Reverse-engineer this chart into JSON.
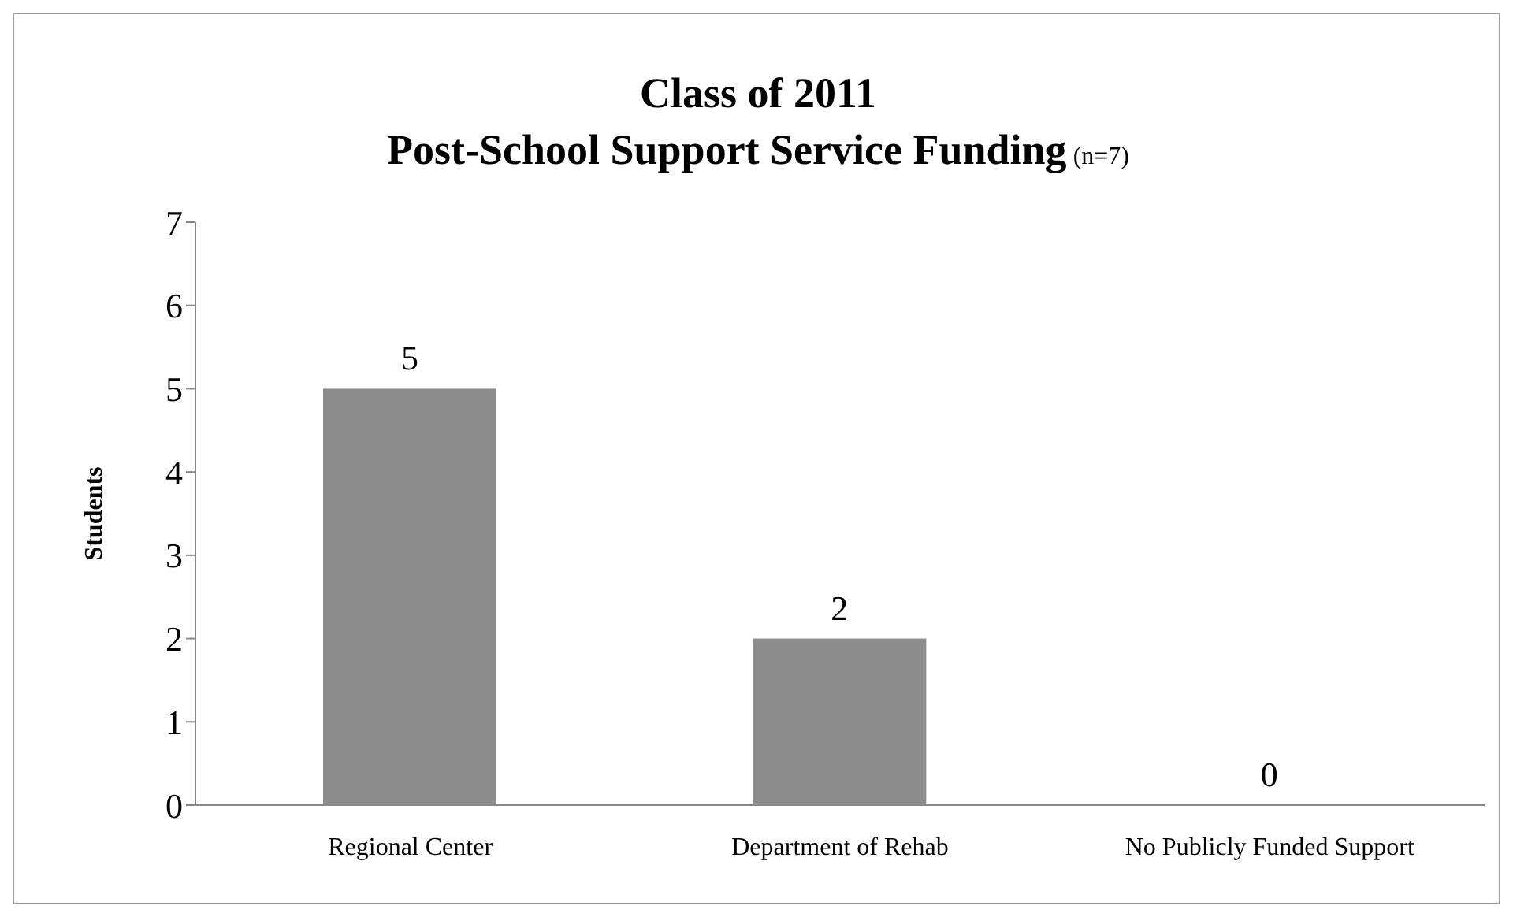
{
  "chart_data": {
    "type": "bar",
    "title": "Class of 2011",
    "subtitle": "Post-School Support Service Funding",
    "annotations": [
      "(n=7)"
    ],
    "ylabel": "Students",
    "categories": [
      "Regional Center",
      "Department of Rehab",
      "No Publicly Funded Support"
    ],
    "values": [
      5,
      2,
      0
    ],
    "color": "#8c8c8c",
    "ylim": [
      0,
      7
    ],
    "yticks": [
      0,
      1,
      2,
      3,
      4,
      5,
      6,
      7
    ],
    "data_labels": true,
    "grid": false,
    "legend": false
  }
}
